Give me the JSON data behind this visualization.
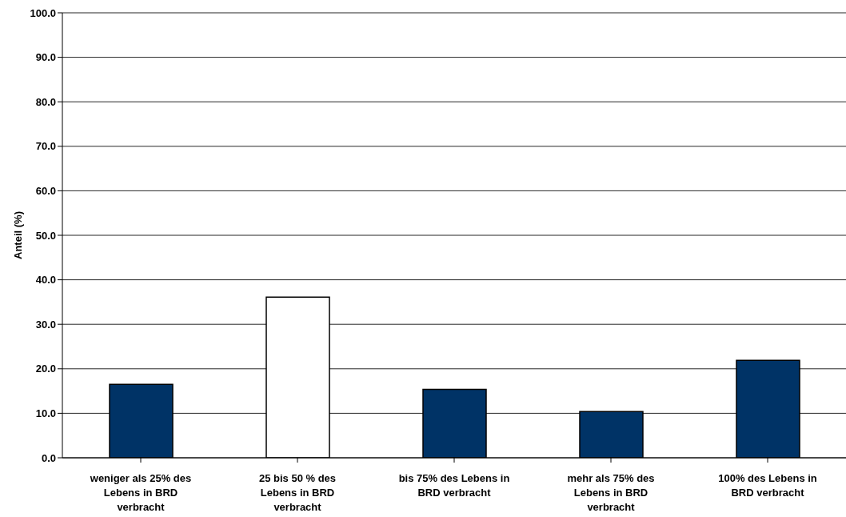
{
  "chart_data": {
    "type": "bar",
    "ylabel": "Anteil (%)",
    "categories": [
      "weniger als 25% des Lebens in BRD verbracht",
      "25 bis 50 % des Lebens in BRD verbracht",
      "bis 75% des Lebens in BRD verbracht",
      "mehr als 75% des Lebens in BRD verbracht",
      "100% des Lebens in BRD verbracht"
    ],
    "values": [
      16.5,
      36.1,
      15.4,
      10.4,
      21.9
    ],
    "colors": [
      "#003366",
      "#ffffff",
      "#003366",
      "#003366",
      "#003366"
    ],
    "ylim": [
      0,
      100
    ],
    "yticks": [
      {
        "value": 0,
        "label": "0.0"
      },
      {
        "value": 10,
        "label": "10.0"
      },
      {
        "value": 20,
        "label": "20.0"
      },
      {
        "value": 30,
        "label": "30.0"
      },
      {
        "value": 40,
        "label": "40.0"
      },
      {
        "value": 50,
        "label": "50.0"
      },
      {
        "value": 60,
        "label": "60.0"
      },
      {
        "value": 70,
        "label": "70.0"
      },
      {
        "value": 80,
        "label": "80.0"
      },
      {
        "value": 90,
        "label": "90.0"
      },
      {
        "value": 100,
        "label": "100.0"
      }
    ],
    "grid": "y",
    "legend": false
  }
}
